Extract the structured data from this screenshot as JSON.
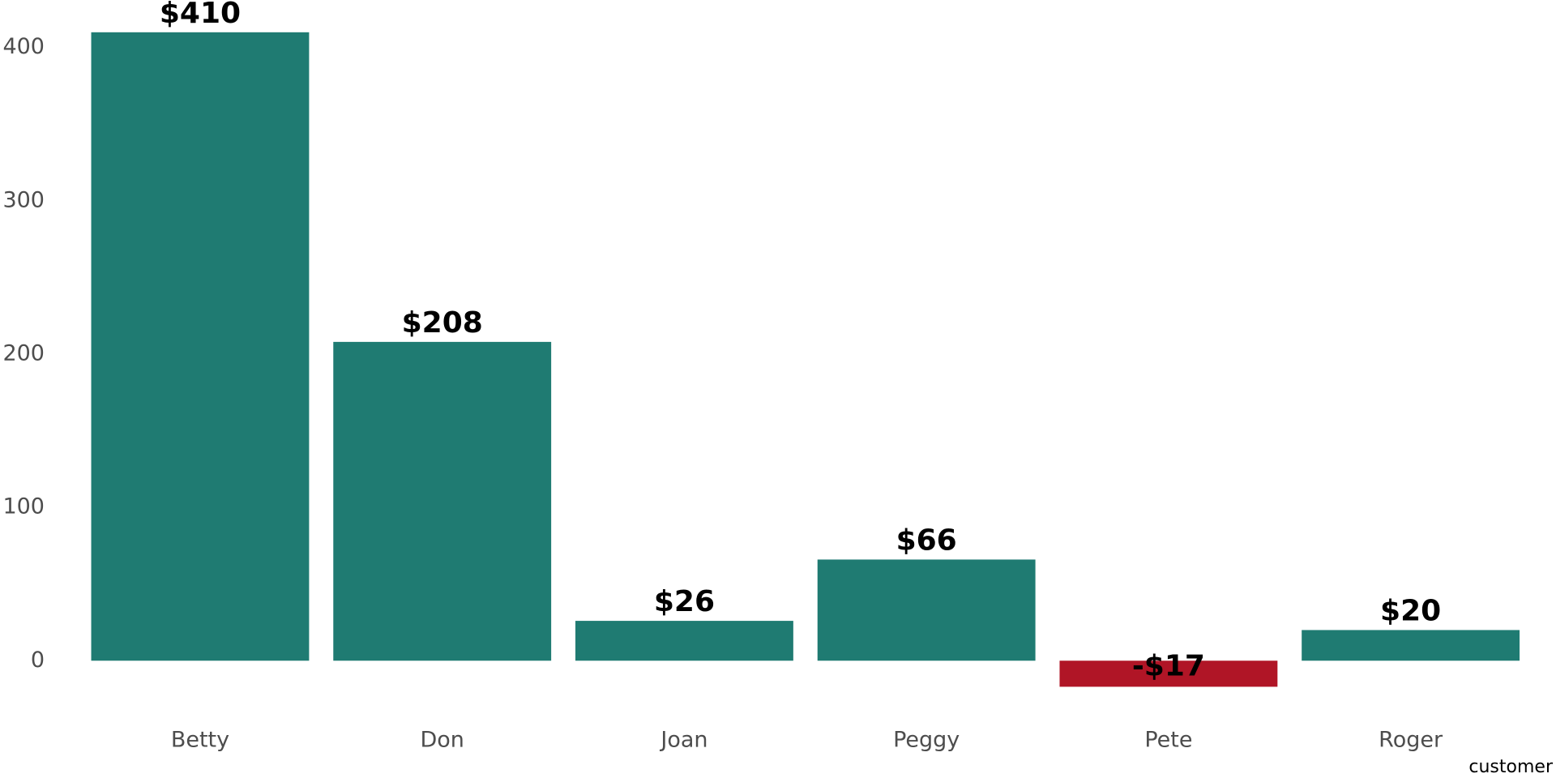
{
  "chart_data": {
    "type": "bar",
    "x_label": "customer",
    "categories": [
      "Betty",
      "Don",
      "Joan",
      "Peggy",
      "Pete",
      "Roger"
    ],
    "values": [
      410,
      208,
      26,
      66,
      -17,
      20
    ],
    "value_labels": [
      "$410",
      "$208",
      "$26",
      "$66",
      "-$17",
      "$20"
    ],
    "colors": [
      "#1f7b72",
      "#1f7b72",
      "#1f7b72",
      "#1f7b72",
      "#b01526",
      "#1f7b72"
    ],
    "ylim": [
      -30,
      430
    ],
    "yticks": [
      0,
      100,
      200,
      300,
      400
    ],
    "grid": false
  }
}
